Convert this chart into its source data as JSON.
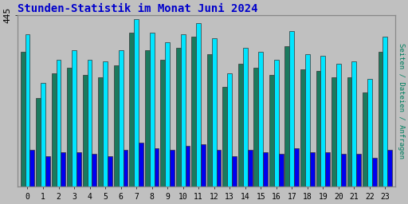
{
  "title": "Stunden-Statistik im Monat Juni 2024",
  "title_color": "#0000cc",
  "title_fontsize": 10,
  "ylabel_right": "Seiten / Dateien / Anfragen",
  "ytick_label": "445",
  "background_color": "#c0c0c0",
  "plot_bg_color": "#c0c0c0",
  "grid_color": "#999999",
  "hours": [
    0,
    1,
    2,
    3,
    4,
    5,
    6,
    7,
    8,
    9,
    10,
    11,
    12,
    13,
    14,
    15,
    16,
    17,
    18,
    19,
    20,
    21,
    22,
    23
  ],
  "seiten": [
    395,
    270,
    330,
    355,
    330,
    325,
    355,
    435,
    400,
    375,
    395,
    425,
    385,
    295,
    360,
    350,
    330,
    405,
    345,
    340,
    320,
    325,
    280,
    390
  ],
  "dateien": [
    350,
    230,
    295,
    310,
    290,
    285,
    315,
    400,
    355,
    330,
    360,
    390,
    345,
    260,
    320,
    310,
    290,
    365,
    305,
    300,
    285,
    285,
    245,
    350
  ],
  "anfragen": [
    95,
    80,
    90,
    90,
    85,
    80,
    95,
    115,
    100,
    95,
    105,
    110,
    95,
    80,
    95,
    90,
    85,
    100,
    90,
    90,
    85,
    85,
    75,
    95
  ],
  "color_seiten": "#00e5ff",
  "color_dateien": "#1a7a5e",
  "color_anfragen": "#0000ee",
  "bar_width": 0.3,
  "ylim": [
    0,
    445
  ],
  "border_color": "#888888",
  "right_label_color": "#008060"
}
